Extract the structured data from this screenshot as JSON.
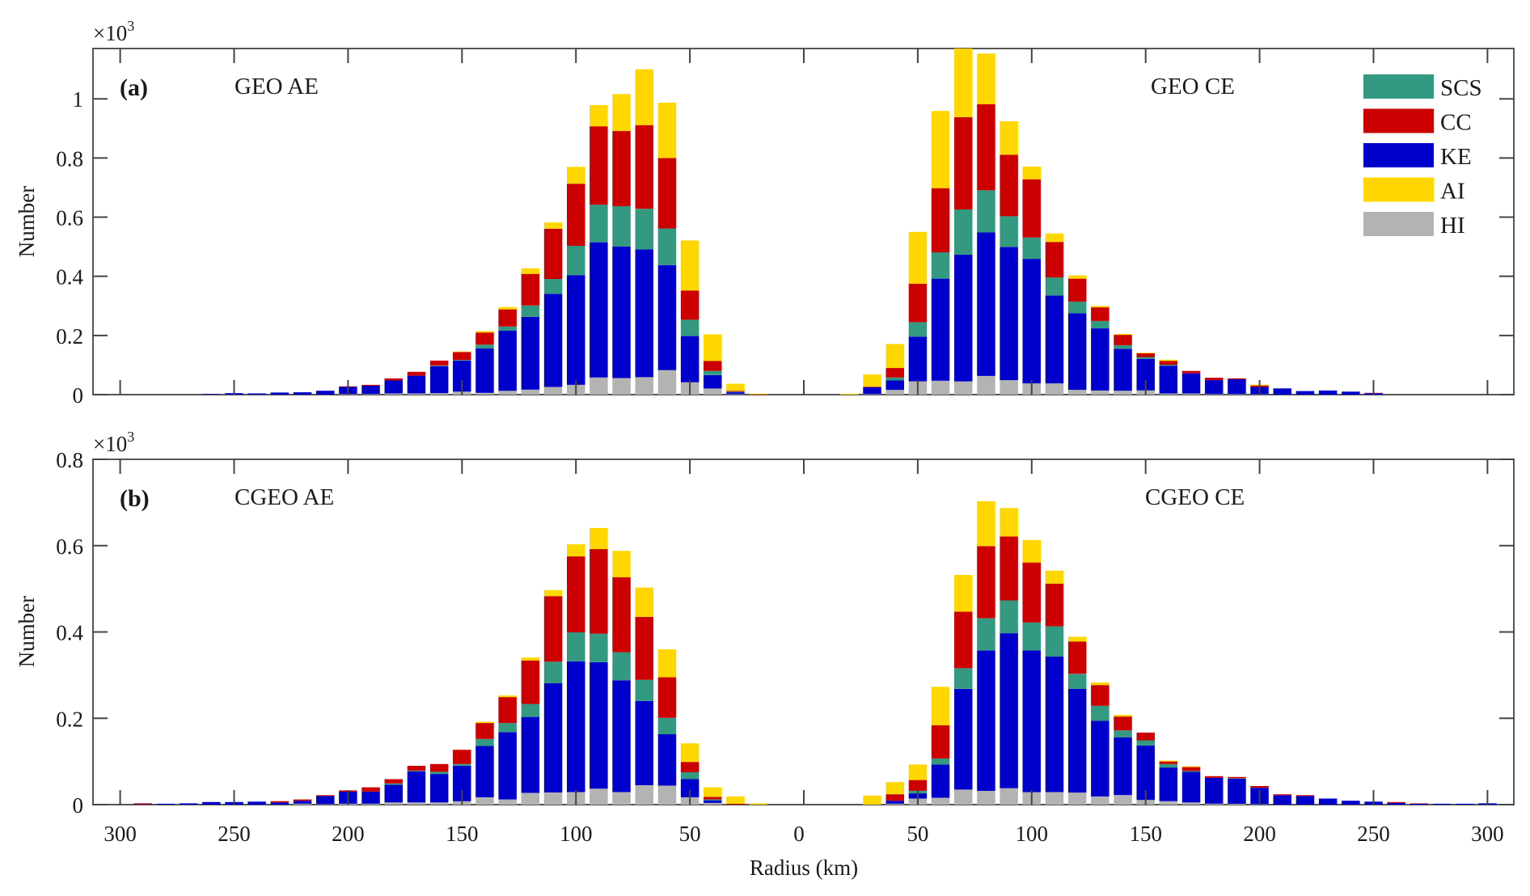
{
  "chart_data": {
    "type": "bar",
    "stacked": true,
    "stack_order_bottom_to_top": [
      "HI",
      "KE",
      "SCS",
      "CC",
      "AI"
    ],
    "xlabel": "Radius (km)",
    "x_tick_labels": [
      "300",
      "250",
      "200",
      "150",
      "100",
      "50",
      "0",
      "50",
      "100",
      "150",
      "200",
      "250",
      "300"
    ],
    "x_tick_values": [
      -300,
      -250,
      -200,
      -150,
      -100,
      -50,
      0,
      50,
      100,
      150,
      200,
      250,
      300
    ],
    "xlim": [
      -310,
      310
    ],
    "bin_width_km": 10,
    "legend": {
      "placement": "top-right of panel (a)",
      "entries": [
        {
          "name": "SCS",
          "color": "#339980"
        },
        {
          "name": "CC",
          "color": "#cc0000"
        },
        {
          "name": "KE",
          "color": "#0000cc"
        },
        {
          "name": "AI",
          "color": "#ffd700"
        },
        {
          "name": "HI",
          "color": "#b3b3b3"
        }
      ]
    },
    "series_colors": {
      "SCS": "#339980",
      "CC": "#cc0000",
      "KE": "#0000cc",
      "AI": "#ffd700",
      "HI": "#b3b3b3"
    },
    "panels": [
      {
        "tag": "(a)",
        "ylabel": "Number",
        "multiplier": "×10",
        "multiplier_exp": "3",
        "ylim": [
          0,
          1.17
        ],
        "y_ticks": [
          0,
          0.2,
          0.4,
          0.6,
          0.8,
          1
        ],
        "y_tick_labels": [
          "0",
          "0.2",
          "0.4",
          "0.6",
          "0.8",
          "1"
        ],
        "value_unit_note": "bar values in counts; axis shown in ×10^3",
        "groups": [
          {
            "title": "GEO AE",
            "side": "left",
            "radius": [
              260,
              250,
              240,
              230,
              220,
              210,
              200,
              190,
              180,
              170,
              160,
              150,
              140,
              130,
              120,
              110,
              100,
              90,
              80,
              70,
              60,
              50,
              40,
              30,
              20
            ],
            "series": [
              {
                "name": "HI",
                "values": [
                  0,
                  0,
                  0,
                  0,
                  0,
                  0,
                  2,
                  2,
                  4,
                  4,
                  5,
                  10,
                  6,
                  13,
                  17,
                  26,
                  33,
                  58,
                  56,
                  59,
                  83,
                  42,
                  21,
                  2,
                  0
                ]
              },
              {
                "name": "KE",
                "values": [
                  2,
                  5,
                  4,
                  7,
                  8,
                  13,
                  24,
                  28,
                  44,
                  60,
                  91,
                  105,
                  150,
                  203,
                  246,
                  315,
                  371,
                  457,
                  445,
                  432,
                  355,
                  156,
                  45,
                  6,
                  0
                ]
              },
              {
                "name": "SCS",
                "values": [
                  0,
                  0,
                  0,
                  0,
                  0,
                  0,
                  0,
                  0,
                  0,
                  0,
                  2,
                  2,
                  13,
                  14,
                  38,
                  50,
                  99,
                  127,
                  136,
                  137,
                  124,
                  55,
                  14,
                  2,
                  0
                ]
              },
              {
                "name": "CC",
                "values": [
                  0,
                  0,
                  0,
                  0,
                  0,
                  0,
                  2,
                  3,
                  7,
                  13,
                  17,
                  27,
                  41,
                  58,
                  107,
                  170,
                  210,
                  265,
                  254,
                  283,
                  238,
                  99,
                  34,
                  3,
                  1
                ]
              },
              {
                "name": "AI",
                "values": [
                  0,
                  0,
                  0,
                  0,
                  0,
                  0,
                  0,
                  0,
                  0,
                  0,
                  0,
                  2,
                  5,
                  8,
                  19,
                  21,
                  57,
                  72,
                  125,
                  189,
                  187,
                  169,
                  90,
                  24,
                  2
                ]
              }
            ]
          },
          {
            "title": "GEO CE",
            "side": "right",
            "radius": [
              20,
              30,
              40,
              50,
              60,
              70,
              80,
              90,
              100,
              110,
              120,
              130,
              140,
              150,
              160,
              170,
              180,
              190,
              200,
              210,
              220,
              230,
              240,
              250
            ],
            "series": [
              {
                "name": "HI",
                "values": [
                  0,
                  2,
                  16,
                  45,
                  47,
                  45,
                  63,
                  49,
                  38,
                  38,
                  16,
                  14,
                  13,
                  14,
                  4,
                  4,
                  2,
                  2,
                  1,
                  0,
                  0,
                  0,
                  0,
                  0
                ]
              },
              {
                "name": "KE",
                "values": [
                  0,
                  23,
                  32,
                  151,
                  345,
                  428,
                  485,
                  450,
                  421,
                  297,
                  259,
                  210,
                  142,
                  107,
                  94,
                  68,
                  47,
                  50,
                  25,
                  21,
                  12,
                  14,
                  10,
                  5
                ]
              },
              {
                "name": "SCS",
                "values": [
                  0,
                  0,
                  10,
                  49,
                  89,
                  153,
                  143,
                  104,
                  72,
                  61,
                  39,
                  25,
                  12,
                  6,
                  3,
                  0,
                  0,
                  0,
                  0,
                  0,
                  0,
                  0,
                  0,
                  0
                ]
              },
              {
                "name": "CC",
                "values": [
                  0,
                  2,
                  32,
                  130,
                  217,
                  312,
                  291,
                  208,
                  197,
                  120,
                  78,
                  46,
                  35,
                  13,
                  13,
                  8,
                  8,
                  3,
                  5,
                  0,
                  0,
                  0,
                  0,
                  1
                ]
              },
              {
                "name": "AI",
                "values": [
                  3,
                  41,
                  81,
                  175,
                  261,
                  232,
                  171,
                  113,
                  43,
                  29,
                  11,
                  5,
                  3,
                  2,
                  4,
                  0,
                  0,
                  0,
                  3,
                  0,
                  0,
                  0,
                  0,
                  0
                ]
              }
            ]
          }
        ]
      },
      {
        "tag": "(b)",
        "ylabel": "Number",
        "multiplier": "×10",
        "multiplier_exp": "3",
        "ylim": [
          0,
          0.8
        ],
        "y_ticks": [
          0,
          0.2,
          0.4,
          0.6,
          0.8
        ],
        "y_tick_labels": [
          "0",
          "0.2",
          "0.4",
          "0.6",
          "0.8"
        ],
        "value_unit_note": "bar values in counts; axis shown in ×10^3",
        "groups": [
          {
            "title": "CGEO AE",
            "side": "left",
            "radius": [
              290,
              280,
              270,
              260,
              250,
              240,
              230,
              220,
              210,
              200,
              190,
              180,
              170,
              160,
              150,
              140,
              130,
              120,
              110,
              100,
              90,
              80,
              70,
              60,
              50,
              40,
              30,
              20
            ],
            "series": [
              {
                "name": "HI",
                "values": [
                  0,
                  0,
                  0,
                  0,
                  0,
                  0,
                  0,
                  2,
                  1,
                  2,
                  2,
                  5,
                  5,
                  5,
                  8,
                  17,
                  12,
                  27,
                  28,
                  29,
                  37,
                  29,
                  45,
                  44,
                  17,
                  4,
                  0,
                  0
                ]
              },
              {
                "name": "KE",
                "values": [
                  1,
                  2,
                  3,
                  6,
                  6,
                  7,
                  5,
                  7,
                  19,
                  28,
                  28,
                  41,
                  72,
                  66,
                  82,
                  119,
                  156,
                  176,
                  253,
                  303,
                  293,
                  259,
                  195,
                  119,
                  42,
                  6,
                  0,
                  0
                ]
              },
              {
                "name": "SCS",
                "values": [
                  0,
                  0,
                  0,
                  0,
                  0,
                  0,
                  0,
                  0,
                  0,
                  0,
                  0,
                  3,
                  2,
                  5,
                  4,
                  16,
                  21,
                  30,
                  50,
                  67,
                  66,
                  65,
                  49,
                  38,
                  16,
                  2,
                  0,
                  0
                ]
              },
              {
                "name": "CC",
                "values": [
                  2,
                  0,
                  0,
                  0,
                  0,
                  0,
                  3,
                  3,
                  2,
                  3,
                  10,
                  10,
                  11,
                  18,
                  33,
                  37,
                  60,
                  101,
                  152,
                  176,
                  196,
                  174,
                  146,
                  94,
                  24,
                  6,
                  2,
                  0
                ]
              },
              {
                "name": "AI",
                "values": [
                  0,
                  0,
                  0,
                  0,
                  0,
                  0,
                  0,
                  0,
                  0,
                  0,
                  0,
                  0,
                  0,
                  0,
                  0,
                  3,
                  4,
                  7,
                  14,
                  28,
                  49,
                  61,
                  68,
                  65,
                  43,
                  22,
                  17,
                  3
                ]
              }
            ]
          },
          {
            "title": "CGEO CE",
            "side": "right",
            "radius": [
              30,
              40,
              50,
              60,
              70,
              80,
              90,
              100,
              110,
              120,
              130,
              140,
              150,
              160,
              170,
              180,
              190,
              200,
              210,
              220,
              230,
              240,
              250,
              260,
              270,
              280,
              290,
              300
            ],
            "series": [
              {
                "name": "HI",
                "values": [
                  0,
                  2,
                  14,
                  16,
                  35,
                  32,
                  38,
                  29,
                  29,
                  28,
                  19,
                  22,
                  11,
                  8,
                  5,
                  2,
                  2,
                  1,
                  0,
                  0,
                  0,
                  0,
                  0,
                  0,
                  0,
                  0,
                  0,
                  0
                ]
              },
              {
                "name": "KE",
                "values": [
                  0,
                  7,
                  12,
                  77,
                  233,
                  325,
                  359,
                  328,
                  314,
                  240,
                  175,
                  134,
                  126,
                  78,
                  71,
                  60,
                  58,
                  38,
                  22,
                  20,
                  14,
                  9,
                  7,
                  4,
                  2,
                  2,
                  2,
                  3
                ]
              },
              {
                "name": "SCS",
                "values": [
                  0,
                  0,
                  6,
                  14,
                  48,
                  75,
                  76,
                  65,
                  70,
                  35,
                  35,
                  16,
                  12,
                  8,
                  2,
                  0,
                  1,
                  0,
                  0,
                  0,
                  0,
                  0,
                  0,
                  0,
                  0,
                  0,
                  0,
                  0
                ]
              },
              {
                "name": "CC",
                "values": [
                  0,
                  15,
                  25,
                  77,
                  131,
                  167,
                  148,
                  139,
                  99,
                  75,
                  48,
                  32,
                  18,
                  6,
                  9,
                  4,
                  3,
                  4,
                  2,
                  2,
                  0,
                  0,
                  0,
                  2,
                  1,
                  0,
                  0,
                  0
                ]
              },
              {
                "name": "AI",
                "values": [
                  21,
                  28,
                  36,
                  89,
                  85,
                  104,
                  66,
                  52,
                  30,
                  11,
                  6,
                  4,
                  0,
                  2,
                  2,
                  0,
                  0,
                  0,
                  0,
                  0,
                  0,
                  0,
                  0,
                  0,
                  0,
                  0,
                  0,
                  0
                ]
              }
            ]
          }
        ]
      }
    ]
  }
}
